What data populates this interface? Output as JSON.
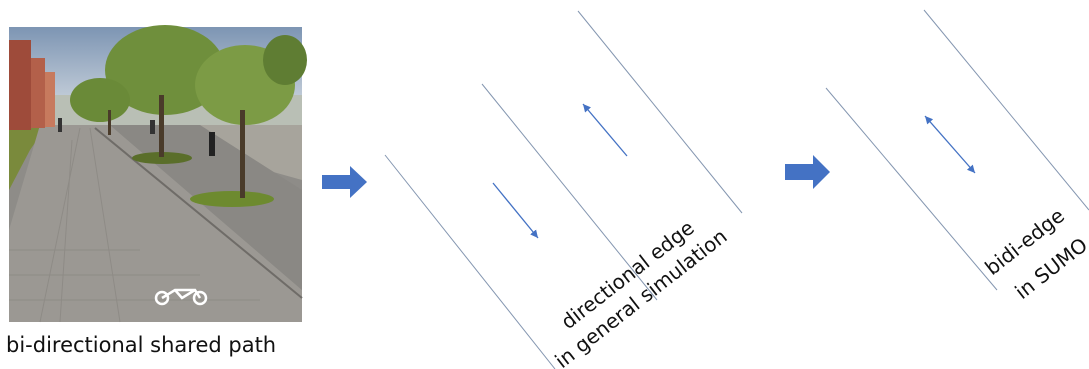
{
  "photo": {
    "caption": "bi-directional shared path"
  },
  "directional": {
    "label_line1": "directional edge",
    "label_line2": "in general simulation"
  },
  "bidi": {
    "label_line1": "bidi-edge",
    "label_line2": "in SUMO"
  },
  "colors": {
    "arrow": "#4472c4",
    "line": "#8496b0"
  }
}
